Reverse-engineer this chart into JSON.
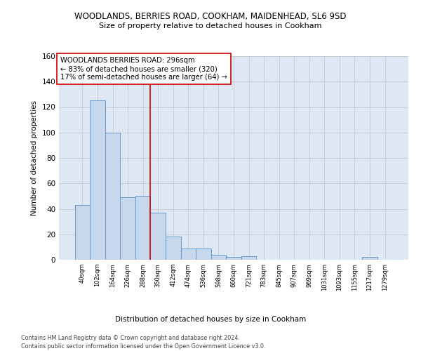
{
  "title": "WOODLANDS, BERRIES ROAD, COOKHAM, MAIDENHEAD, SL6 9SD",
  "subtitle": "Size of property relative to detached houses in Cookham",
  "xlabel_bottom": "Distribution of detached houses by size in Cookham",
  "ylabel": "Number of detached properties",
  "footer_line1": "Contains HM Land Registry data © Crown copyright and database right 2024.",
  "footer_line2": "Contains public sector information licensed under the Open Government Licence v3.0.",
  "bar_labels": [
    "40sqm",
    "102sqm",
    "164sqm",
    "226sqm",
    "288sqm",
    "350sqm",
    "412sqm",
    "474sqm",
    "536sqm",
    "598sqm",
    "660sqm",
    "721sqm",
    "783sqm",
    "845sqm",
    "907sqm",
    "969sqm",
    "1031sqm",
    "1093sqm",
    "1155sqm",
    "1217sqm",
    "1279sqm"
  ],
  "bar_values": [
    43,
    125,
    100,
    49,
    50,
    37,
    18,
    9,
    9,
    4,
    2,
    3,
    0,
    0,
    0,
    0,
    0,
    0,
    0,
    2,
    0
  ],
  "bar_color": "#c8d8ec",
  "bar_edgecolor": "#6699cc",
  "grid_color": "#cccccc",
  "bg_color": "#dde8f4",
  "vline_x": 4.5,
  "vline_color": "#cc0000",
  "annotation_text": "WOODLANDS BERRIES ROAD: 296sqm\n← 83% of detached houses are smaller (320)\n17% of semi-detached houses are larger (64) →",
  "annotation_box_edgecolor": "#cc0000",
  "ylim": [
    0,
    160
  ],
  "yticks": [
    0,
    20,
    40,
    60,
    80,
    100,
    120,
    140,
    160
  ],
  "figsize": [
    6.0,
    5.0
  ],
  "dpi": 100
}
